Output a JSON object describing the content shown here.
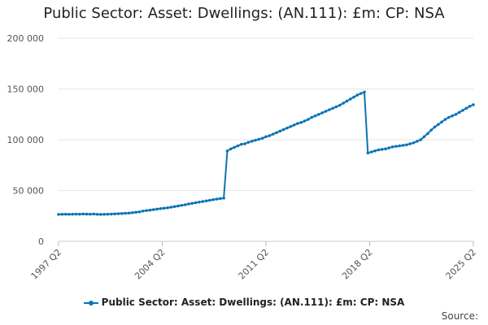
{
  "chart_data": {
    "type": "line",
    "title": "Public Sector: Asset: Dwellings: (AN.111): £m: CP: NSA",
    "xlabel": "",
    "ylabel": "",
    "ylim": [
      0,
      200000
    ],
    "y_ticks": [
      0,
      50000,
      100000,
      150000,
      200000
    ],
    "y_tick_labels": [
      "0",
      "50 000",
      "100 000",
      "150 000",
      "200 000"
    ],
    "x_tick_labels": [
      "1997 Q2",
      "2004 Q2",
      "2011 Q2",
      "2018 Q2",
      "2025 Q2"
    ],
    "x_start": "1997 Q2",
    "x_end": "2025 Q2",
    "grid": "horizontal",
    "legend": "bottom",
    "color": "#0b74b5",
    "series": [
      {
        "name": "Public Sector: Asset: Dwellings: (AN.111): £m: CP: NSA",
        "values": [
          26500,
          26600,
          26700,
          26600,
          26700,
          26800,
          26700,
          26900,
          26800,
          26700,
          26900,
          26600,
          26500,
          26600,
          26700,
          26800,
          27000,
          27200,
          27400,
          27600,
          27800,
          28200,
          28600,
          29000,
          29800,
          30300,
          30700,
          31200,
          31700,
          32200,
          32600,
          33000,
          33600,
          34200,
          34800,
          35400,
          36000,
          36800,
          37400,
          38000,
          38600,
          39200,
          39800,
          40400,
          41000,
          41600,
          42100,
          42500,
          89000,
          91000,
          92500,
          94000,
          95500,
          96000,
          97500,
          98500,
          99500,
          100500,
          101500,
          103000,
          104000,
          105500,
          107000,
          108500,
          110000,
          111500,
          113000,
          114500,
          116000,
          117000,
          118500,
          120000,
          122000,
          123500,
          125000,
          126500,
          128000,
          129500,
          131000,
          132500,
          134000,
          136000,
          138000,
          140000,
          142000,
          144000,
          145500,
          147000,
          87000,
          88000,
          89000,
          90000,
          90500,
          91000,
          92000,
          93000,
          93500,
          94000,
          94500,
          95000,
          96000,
          97000,
          98500,
          100000,
          103000,
          106000,
          109500,
          112500,
          115000,
          117500,
          120000,
          122000,
          123500,
          125000,
          127000,
          129000,
          131000,
          133000,
          134500
        ]
      }
    ]
  },
  "source_label": "Source:"
}
